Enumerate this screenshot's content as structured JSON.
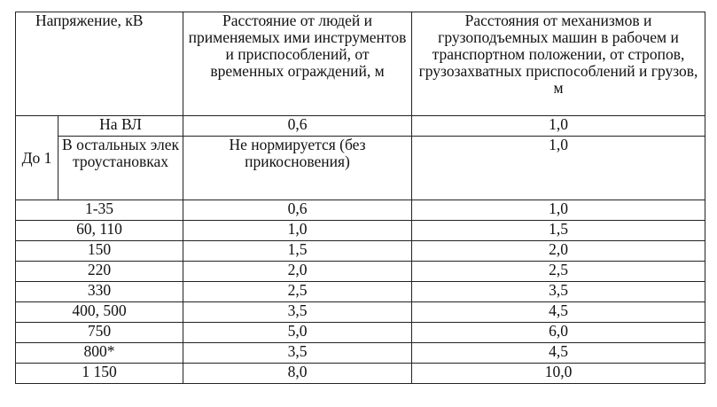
{
  "table": {
    "headers": {
      "voltage": "Напряжение, кВ",
      "people": "Расстояние от людей и применяемых ими инструментов и приспособлений, от временных ограждений, м",
      "machines": "Расстояния от механизмов и грузоподъемных машин в рабочем и транспортном положении, от стропов, грузозахватных приспособлений и грузов, м"
    },
    "group": {
      "label": "До 1",
      "rows": [
        {
          "voltage": "На ВЛ",
          "people": "0,6",
          "machines": "1,0"
        },
        {
          "voltage": "В остальных электроустановках",
          "people": "Не нормируется (без прикосновения)",
          "machines": "1,0"
        }
      ]
    },
    "rows": [
      {
        "voltage": "1-35",
        "people": "0,6",
        "machines": "1,0"
      },
      {
        "voltage": "60, 110",
        "people": "1,0",
        "machines": "1,5"
      },
      {
        "voltage": "150",
        "people": "1,5",
        "machines": "2,0"
      },
      {
        "voltage": "220",
        "people": "2,0",
        "machines": "2,5"
      },
      {
        "voltage": "330",
        "people": "2,5",
        "machines": "3,5"
      },
      {
        "voltage": "400, 500",
        "people": "3,5",
        "machines": "4,5"
      },
      {
        "voltage": "750",
        "people": "5,0",
        "machines": "6,0"
      },
      {
        "voltage": "800*",
        "people": "3,5",
        "machines": "4,5"
      },
      {
        "voltage": "1 150",
        "people": "8,0",
        "machines": "10,0"
      }
    ]
  }
}
